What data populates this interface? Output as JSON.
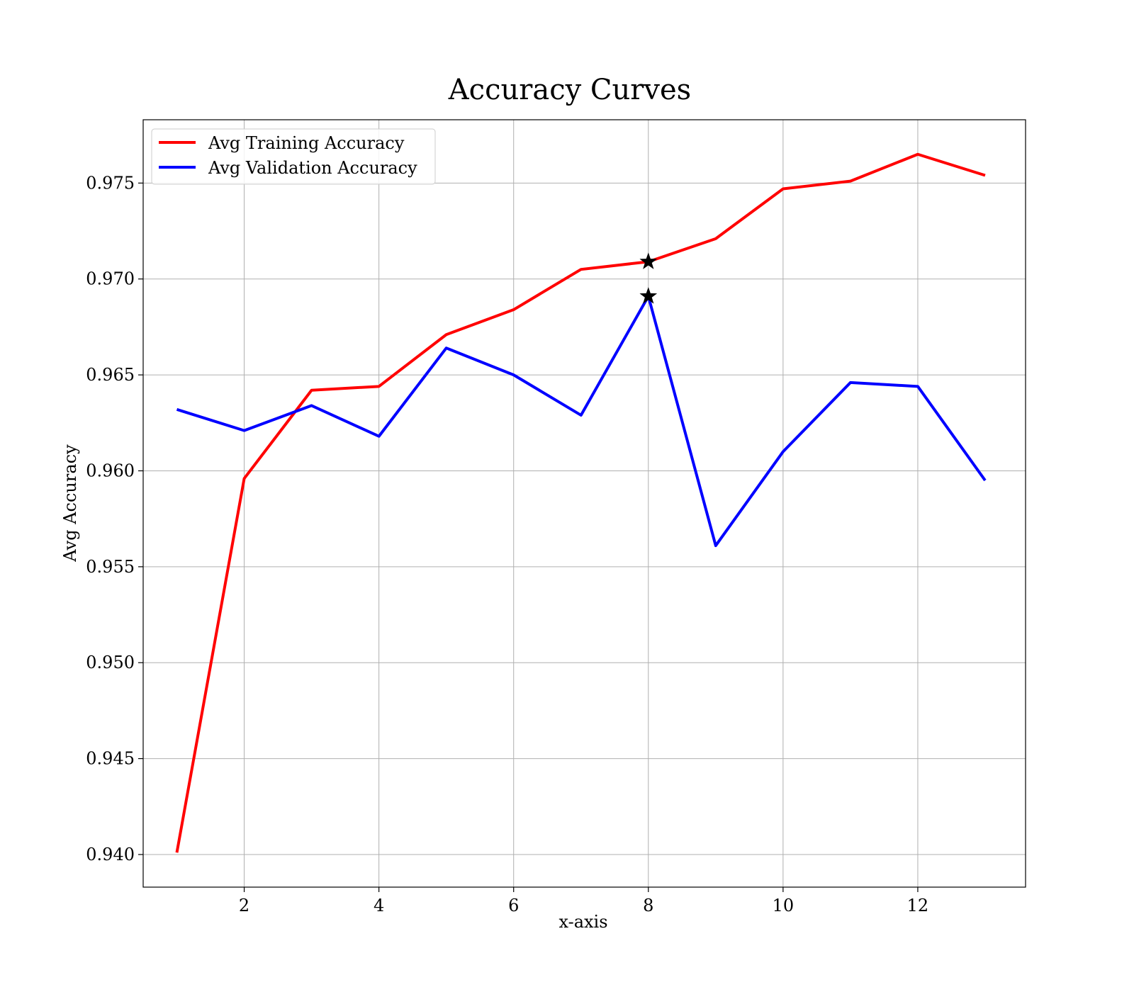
{
  "chart_data": {
    "type": "line",
    "title": "Accuracy Curves",
    "xlabel": "x-axis",
    "ylabel": "Avg Accuracy",
    "xlim": [
      0.5,
      13.6
    ],
    "ylim": [
      0.9383,
      0.9783
    ],
    "xticks": [
      2,
      4,
      6,
      8,
      10,
      12
    ],
    "yticks": [
      0.94,
      0.945,
      0.95,
      0.955,
      0.96,
      0.965,
      0.97,
      0.975
    ],
    "grid": true,
    "legend_position": "top-left",
    "x": [
      1,
      2,
      3,
      4,
      5,
      6,
      7,
      8,
      9,
      10,
      11,
      12,
      13
    ],
    "series": [
      {
        "name": "Avg Training Accuracy",
        "color": "#ff0000",
        "values": [
          0.9401,
          0.9596,
          0.9642,
          0.9644,
          0.9671,
          0.9684,
          0.9705,
          0.9709,
          0.9721,
          0.9747,
          0.9751,
          0.9765,
          0.9754
        ]
      },
      {
        "name": "Avg Validation Accuracy",
        "color": "#0000ff",
        "values": [
          0.9632,
          0.9621,
          0.9634,
          0.9618,
          0.9664,
          0.965,
          0.9629,
          0.9691,
          0.9561,
          0.961,
          0.9646,
          0.9644,
          0.9595
        ]
      }
    ],
    "markers": [
      {
        "x": 8,
        "y": 0.9709,
        "symbol": "star",
        "color": "#000000"
      },
      {
        "x": 8,
        "y": 0.9691,
        "symbol": "star",
        "color": "#000000"
      }
    ]
  }
}
